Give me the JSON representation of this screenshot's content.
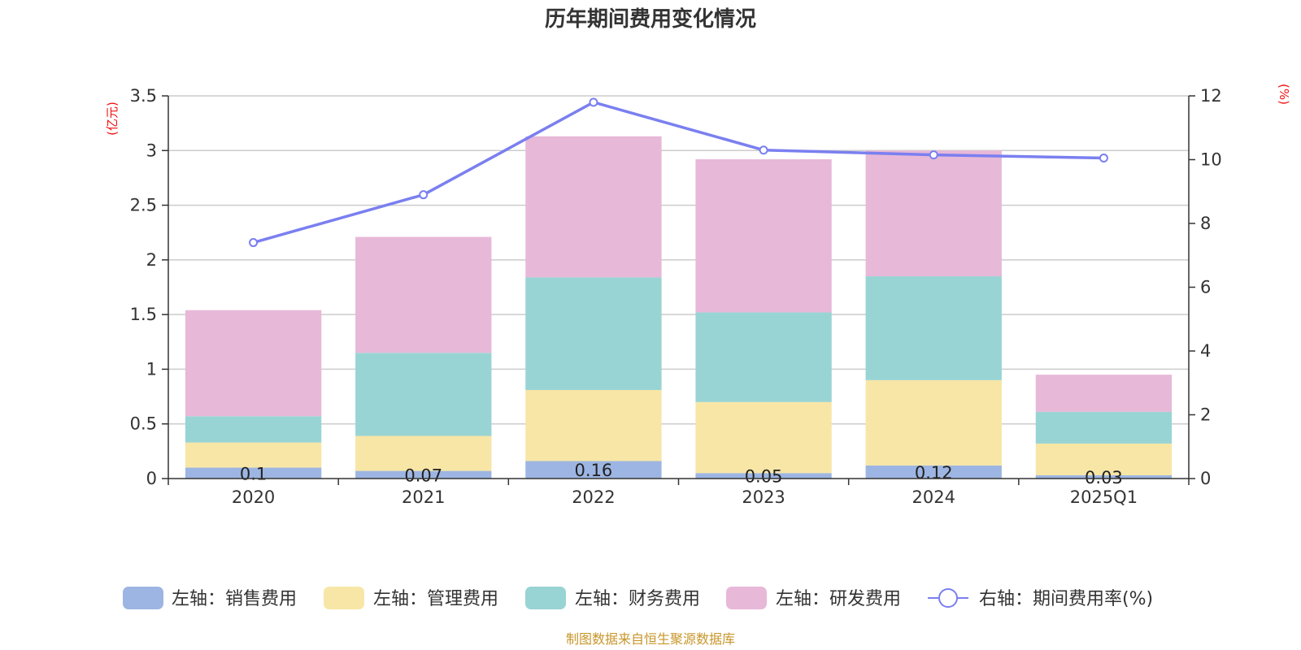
{
  "chart_data": {
    "type": "bar",
    "title": "历年期间费用变化情况",
    "categories": [
      "2020",
      "2021",
      "2022",
      "2023",
      "2024",
      "2025Q1"
    ],
    "y_left": {
      "unit_label": "(亿元)",
      "ylim": [
        0,
        3.5
      ],
      "ticks": [
        "0",
        "0.5",
        "1",
        "1.5",
        "2",
        "2.5",
        "3",
        "3.5"
      ]
    },
    "y_right": {
      "unit_label": "(%)",
      "ylim": [
        0,
        12
      ],
      "ticks": [
        "0",
        "2",
        "4",
        "6",
        "8",
        "10",
        "12"
      ]
    },
    "series": [
      {
        "name": "左轴：销售费用",
        "kind": "bar",
        "axis": "left",
        "color": "#9db5e2",
        "values": [
          0.1,
          0.07,
          0.16,
          0.05,
          0.12,
          0.03
        ],
        "labels": [
          "0.1",
          "0.07",
          "0.16",
          "0.05",
          "0.12",
          "0.03"
        ]
      },
      {
        "name": "左轴：管理费用",
        "kind": "bar",
        "axis": "left",
        "color": "#f7e6a6",
        "values": [
          0.23,
          0.32,
          0.65,
          0.65,
          0.78,
          0.29
        ]
      },
      {
        "name": "左轴：财务费用",
        "kind": "bar",
        "axis": "left",
        "color": "#99d4d4",
        "values": [
          0.24,
          0.76,
          1.03,
          0.82,
          0.95,
          0.29
        ]
      },
      {
        "name": "左轴：研发费用",
        "kind": "bar",
        "axis": "left",
        "color": "#e7b8d8",
        "values": [
          0.97,
          1.06,
          1.29,
          1.4,
          1.15,
          0.34
        ]
      },
      {
        "name": "右轴：期间费用率(%)",
        "kind": "line",
        "axis": "right",
        "color": "#7a7ff0",
        "values": [
          7.4,
          8.9,
          11.8,
          10.3,
          10.15,
          10.05
        ]
      }
    ],
    "grid": true,
    "legend_position": "bottom"
  },
  "footer": {
    "source": "制图数据来自恒生聚源数据库"
  }
}
